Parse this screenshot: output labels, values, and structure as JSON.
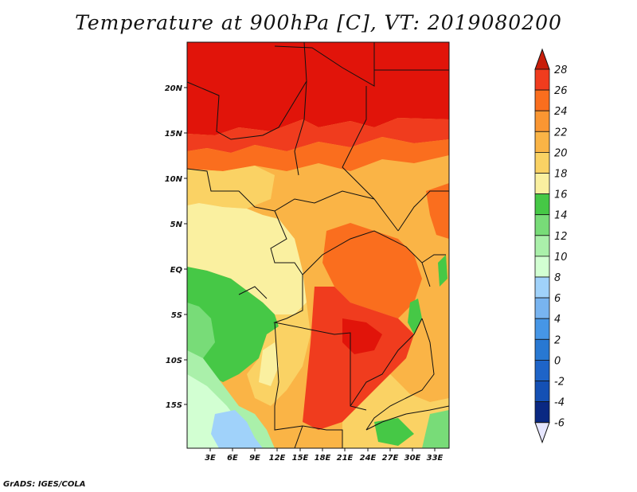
{
  "title": "Temperature at 900hPa [C], VT: 2019080200",
  "credit": "GrADS: IGES/COLA",
  "axes": {
    "lat_ticks": [
      "20N",
      "15N",
      "10N",
      "5N",
      "EQ",
      "5S",
      "10S",
      "15S"
    ],
    "lon_ticks": [
      "3E",
      "6E",
      "9E",
      "12E",
      "15E",
      "18E",
      "21E",
      "24E",
      "27E",
      "30E",
      "33E"
    ]
  },
  "colorbar": {
    "levels": [
      "28",
      "26",
      "24",
      "22",
      "20",
      "18",
      "16",
      "14",
      "12",
      "10",
      "8",
      "6",
      "4",
      "2",
      "0",
      "-2",
      "-4",
      "-6"
    ],
    "colors": [
      "#e1140a",
      "#f03c1e",
      "#fa6e1e",
      "#fa9632",
      "#fab446",
      "#fad264",
      "#faf0a0",
      "#46c846",
      "#78dc78",
      "#aaf0aa",
      "#d2ffd2",
      "#a0d2fa",
      "#78b4f0",
      "#4696e6",
      "#2878d2",
      "#1e64c8",
      "#1450b4",
      "#0a2882",
      "#e6e6ff"
    ],
    "top_arrow_color": "#c81e0a",
    "bottom_arrow_color": "#e6e6ff"
  },
  "map": {
    "region": "Central and Southern-Central Africa",
    "lon_range": [
      0,
      35
    ],
    "lat_range": [
      -19.5,
      24.5
    ]
  }
}
